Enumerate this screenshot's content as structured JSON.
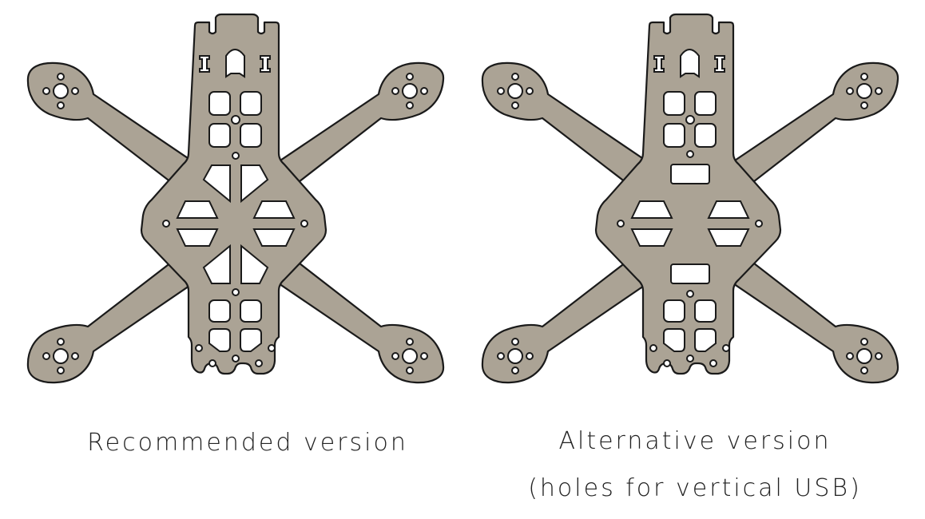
{
  "colors": {
    "plate": "#aba395",
    "outline": "#1a1a1a",
    "background": "#ffffff",
    "text": "#222222"
  },
  "captions": {
    "recommended": "Recommended version",
    "alternative_line1": "Alternative version",
    "alternative_line2": "(holes for vertical USB)"
  }
}
